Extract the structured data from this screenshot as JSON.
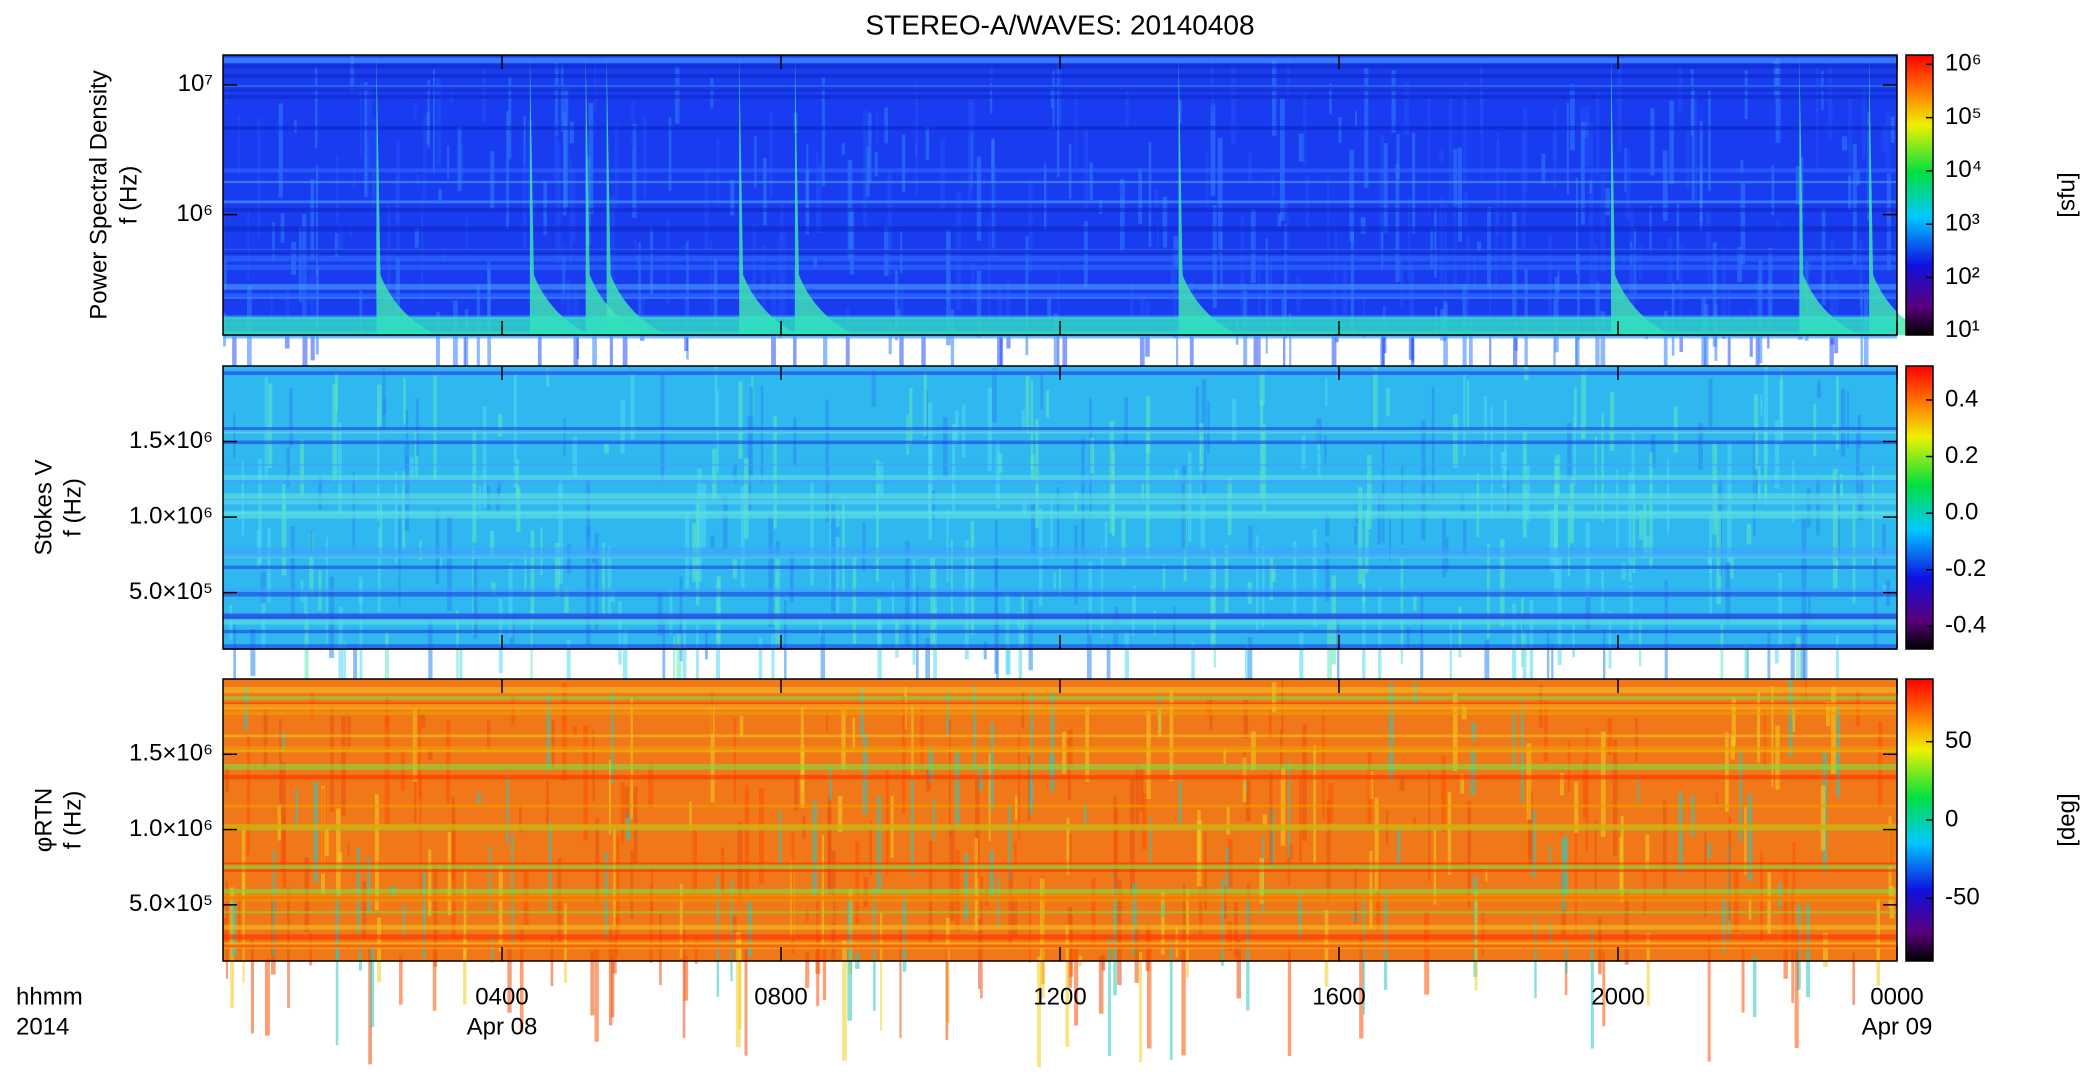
{
  "title": "STEREO-A/WAVES: 20140408",
  "chart_data": [
    {
      "type": "spectrogram",
      "ylabel": [
        "Power Spectral Density",
        "f (Hz)"
      ],
      "log": true,
      "ylim": [
        118000,
        17000000
      ],
      "yticks": [
        {
          "value": 1000000,
          "label": "10⁶"
        },
        {
          "value": 10000000,
          "label": "10⁷"
        }
      ],
      "colorbar": {
        "label": "[sfu]",
        "log": true,
        "lim": [
          8.3,
          1500000
        ],
        "ticks": [
          {
            "value": 10,
            "label": "10¹"
          },
          {
            "value": 100,
            "label": "10²"
          },
          {
            "value": 1000,
            "label": "10³"
          },
          {
            "value": 10000,
            "label": "10⁴"
          },
          {
            "value": 100000,
            "label": "10⁵"
          },
          {
            "value": 1000000,
            "label": "10⁶"
          }
        ]
      }
    },
    {
      "type": "spectrogram",
      "ylabel": [
        "Stokes V",
        "f (Hz)"
      ],
      "log": false,
      "ylim": [
        127000,
        2000000
      ],
      "yticks": [
        {
          "value": 500000,
          "label": "5.0×10⁵"
        },
        {
          "value": 1000000,
          "label": "1.0×10⁶"
        },
        {
          "value": 1500000,
          "label": "1.5×10⁶"
        }
      ],
      "colorbar": {
        "log": false,
        "lim": [
          -0.48,
          0.52
        ],
        "ticks": [
          {
            "value": -0.4,
            "label": "-0.4"
          },
          {
            "value": -0.2,
            "label": "-0.2"
          },
          {
            "value": 0,
            "label": "0.0"
          },
          0.2,
          0.4
        ]
      }
    },
    {
      "type": "spectrogram",
      "ylabel": [
        "φRTN",
        "f (Hz)"
      ],
      "log": false,
      "ylim": [
        127000,
        2000000
      ],
      "yticks": [
        {
          "value": 500000,
          "label": "5.0×10⁵"
        },
        {
          "value": 1000000,
          "label": "1.0×10⁶"
        },
        {
          "value": 1500000,
          "label": "1.5×10⁶"
        }
      ],
      "colorbar": {
        "label": "[deg]",
        "log": false,
        "lim": [
          -90,
          90
        ],
        "ticks": [
          -50,
          0,
          50
        ]
      },
      "xlabel": [
        "hhmm",
        "2014"
      ],
      "xlim": [
        0,
        24
      ],
      "xticks": [
        {
          "value": 4,
          "label": "0400"
        },
        {
          "value": 8,
          "label": "0800"
        },
        {
          "value": 12,
          "label": "1200"
        },
        {
          "value": 16,
          "label": "1600"
        },
        {
          "value": 20,
          "label": "2000"
        },
        {
          "value": 24,
          "label": "0000"
        }
      ],
      "xdates": [
        {
          "value": 4,
          "label": "Apr 08"
        },
        {
          "value": 24,
          "label": "Apr 09"
        }
      ]
    }
  ]
}
